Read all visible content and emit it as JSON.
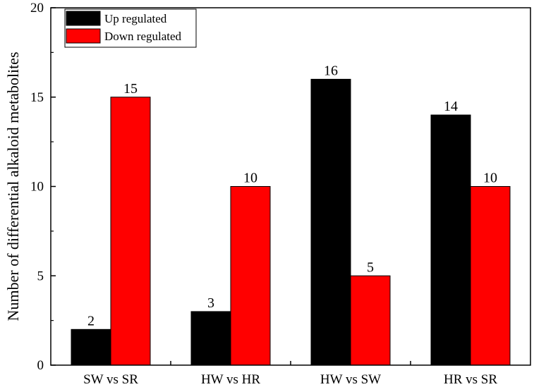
{
  "chart_data": {
    "type": "bar",
    "categories": [
      "SW vs SR",
      "HW vs HR",
      "HW vs SW",
      "HR vs SR"
    ],
    "series": [
      {
        "name": "Up regulated",
        "values": [
          2,
          3,
          16,
          14
        ],
        "color": "#000000"
      },
      {
        "name": "Down regulated",
        "values": [
          15,
          10,
          5,
          10
        ],
        "color": "#ff0000"
      }
    ],
    "ylabel": "Number of differential alkaloid metabolites",
    "xlabel": "",
    "ylim": [
      0,
      20
    ],
    "yticks": [
      0,
      5,
      10,
      15,
      20
    ],
    "legend_position": "top-left",
    "grid": false
  }
}
